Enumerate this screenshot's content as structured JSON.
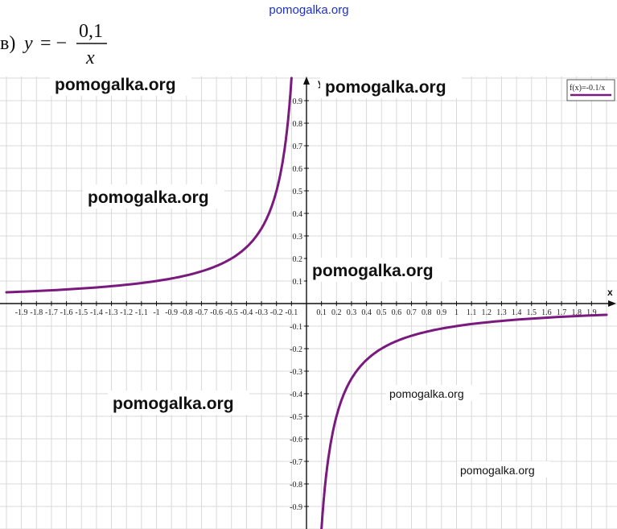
{
  "header": {
    "site_watermark": "pomogalka.org",
    "problem_prefix": "в)",
    "formula_lhs": "y",
    "formula_equals": "= −",
    "formula_numerator": "0,1",
    "formula_denominator": "x"
  },
  "watermarks": [
    "pomogalka.org",
    "pomogalka.org",
    "pomogalka.org",
    "pomogalka.org",
    "pomogalka.org",
    "pomogalka.org",
    "pomogalka.org"
  ],
  "colors": {
    "curve": "#7a1a7e",
    "grid": "#d9d9d9",
    "axis": "#111111",
    "watermark_top": "#1d2fd0"
  },
  "chart_data": {
    "type": "line",
    "title": "",
    "xlabel": "x",
    "ylabel": "y",
    "xlim": [
      -2.0,
      2.05
    ],
    "ylim": [
      -1.0,
      1.0
    ],
    "grid": true,
    "legend_position": "top-right",
    "x_ticks": [
      "-1.9",
      "-1.8",
      "-1.7",
      "-1.6",
      "-1.5",
      "-1.4",
      "-1.3",
      "-1.2",
      "-1.1",
      "-1",
      "-0.9",
      "-0.8",
      "-0.7",
      "-0.6",
      "-0.5",
      "-0.4",
      "-0.3",
      "-0.2",
      "-0.1",
      "0.1",
      "0.2",
      "0.3",
      "0.4",
      "0.5",
      "0.6",
      "0.7",
      "0.8",
      "0.9",
      "1",
      "1.1",
      "1.2",
      "1.3",
      "1.4",
      "1.5",
      "1.6",
      "1.7",
      "1.8",
      "1.9"
    ],
    "y_ticks": [
      "0.9",
      "0.8",
      "0.7",
      "0.6",
      "0.5",
      "0.4",
      "0.3",
      "0.2",
      "0.1",
      "-0.1",
      "-0.2",
      "-0.3",
      "-0.4",
      "-0.5",
      "-0.6",
      "-0.7",
      "-0.8",
      "-0.9"
    ],
    "series": [
      {
        "name": "f(x)=-0.1/x",
        "function": "-0.1/x",
        "x": [
          -2.0,
          -1.5,
          -1.0,
          -0.8,
          -0.6,
          -0.5,
          -0.4,
          -0.3,
          -0.25,
          -0.2,
          -0.15,
          -0.12,
          -0.11,
          -0.1,
          0.1,
          0.11,
          0.12,
          0.15,
          0.2,
          0.25,
          0.3,
          0.4,
          0.5,
          0.6,
          0.8,
          1.0,
          1.5,
          2.0
        ],
        "y": [
          0.05,
          0.0667,
          0.1,
          0.125,
          0.1667,
          0.2,
          0.25,
          0.3333,
          0.4,
          0.5,
          0.6667,
          0.8333,
          0.9091,
          1.0,
          -1.0,
          -0.9091,
          -0.8333,
          -0.6667,
          -0.5,
          -0.4,
          -0.3333,
          -0.25,
          -0.2,
          -0.1667,
          -0.125,
          -0.1,
          -0.0667,
          -0.05
        ]
      }
    ]
  }
}
